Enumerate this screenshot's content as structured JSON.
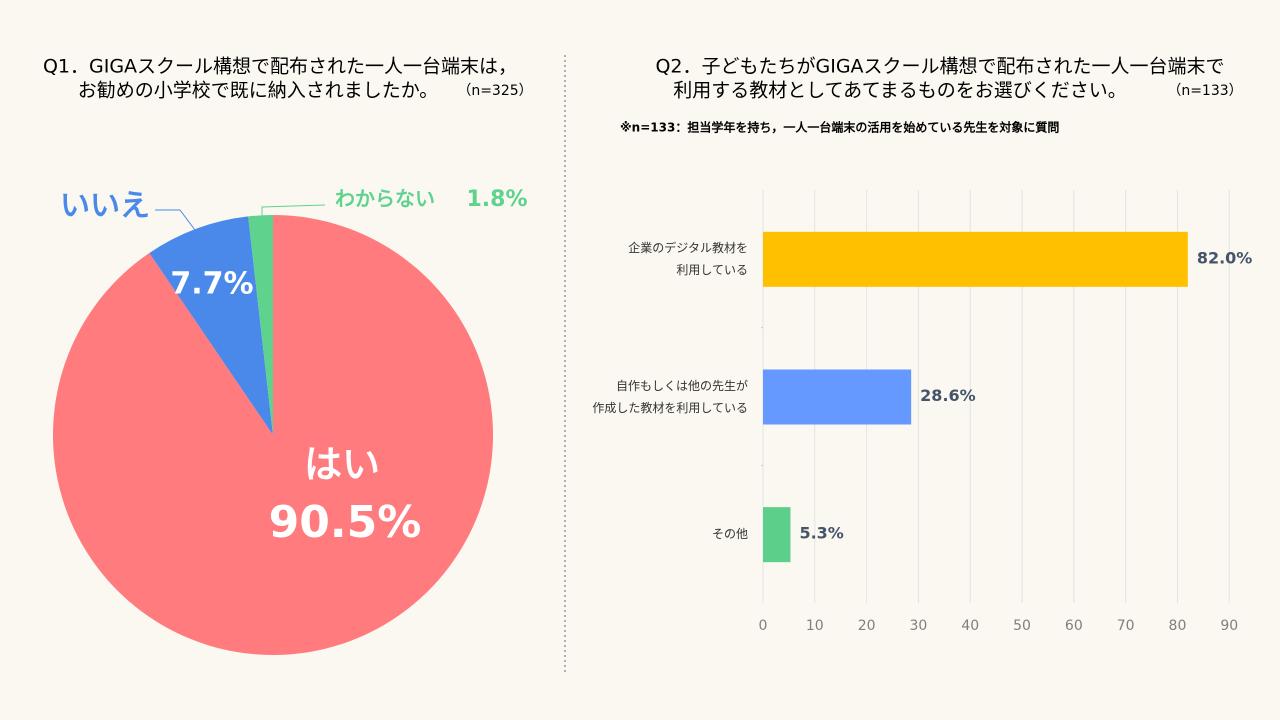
{
  "chart_data": [
    {
      "type": "pie",
      "title": [
        "Q1．GIGAスクール構想で配布された一人一台端末は，",
        "お勧めの小学校で既に納入されましたか。"
      ],
      "note": "（n=325）",
      "categories": [
        "はい",
        "いいえ",
        "わからない"
      ],
      "values": [
        90.5,
        7.7,
        1.8
      ],
      "value_labels": [
        "90.5%",
        "7.7%",
        "1.8%"
      ],
      "colors": [
        "#ff7b7e",
        "#4a89ea",
        "#5fd38e"
      ]
    },
    {
      "type": "hbar",
      "title": [
        "Q2．子どもたちがGIGAスクール構想で配布された一人一台端末で",
        "利用する教材としてあてまるものをお選びください。"
      ],
      "note": "（n=133）",
      "subtitle": "※n=133：担当学年を持ち，一人一台端末の活用を始めている先生を対象に質問",
      "categories": [
        "企業のデジタル教材を\n利用している",
        "自作もしくは他の先生が\n作成した教材を利用している",
        "その他"
      ],
      "values": [
        82.0,
        28.6,
        5.3
      ],
      "value_labels": [
        "82.0%",
        "28.6%",
        "5.3%"
      ],
      "colors": [
        "#ffc000",
        "#6699ff",
        "#5ccf8a"
      ],
      "xlim": [
        0,
        94
      ],
      "xticks": [
        0,
        10,
        20,
        30,
        40,
        50,
        60,
        70,
        80,
        90
      ],
      "grid": true
    }
  ]
}
